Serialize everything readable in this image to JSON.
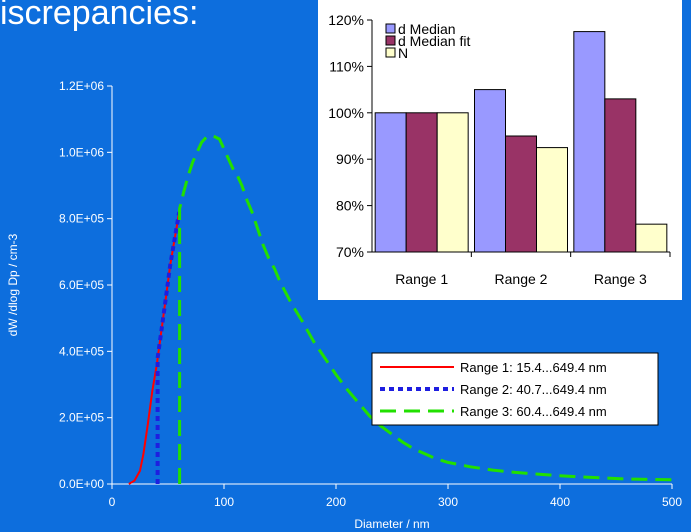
{
  "slide": {
    "heading": "iscrepancies:"
  },
  "colors": {
    "background": "#0d6edd",
    "white": "#ffffff"
  },
  "chart_data": [
    {
      "type": "line",
      "title": "",
      "xlabel": "Diameter / nm",
      "ylabel": "dW /dlog Dp / cm-3",
      "xlim": [
        0,
        500
      ],
      "ylim": [
        0,
        1200000
      ],
      "x_ticks": [
        "0",
        "100",
        "200",
        "300",
        "400",
        "500"
      ],
      "y_ticks": [
        "0.0E+00",
        "2.0E+05",
        "4.0E+05",
        "6.0E+05",
        "8.0E+05",
        "1.0E+06",
        "1.2E+06"
      ],
      "grid": false,
      "legend_position": "right",
      "series": [
        {
          "name": "Range 1: 15.4...649.4 nm",
          "color": "#ff0000",
          "style": "solid",
          "points": [
            [
              15,
              0
            ],
            [
              20,
              10000
            ],
            [
              25,
              40000
            ],
            [
              28,
              90000
            ],
            [
              32,
              180000
            ],
            [
              36,
              280000
            ],
            [
              40,
              360000
            ],
            [
              44,
              460000
            ],
            [
              48,
              560000
            ],
            [
              52,
              660000
            ],
            [
              56,
              740000
            ],
            [
              60,
              820000
            ]
          ]
        },
        {
          "name": "Range 2: 40.7...649.4 nm",
          "color": "#1e1ee0",
          "style": "dotted",
          "points": [
            [
              40.7,
              0
            ],
            [
              40.7,
              380000
            ],
            [
              44,
              460000
            ],
            [
              48,
              560000
            ],
            [
              52,
              660000
            ],
            [
              56,
              740000
            ],
            [
              60,
              820000
            ]
          ]
        },
        {
          "name": "Range 3: 60.4...649.4 nm",
          "color": "#22e000",
          "style": "dashed",
          "points": [
            [
              60.4,
              0
            ],
            [
              60.4,
              830000
            ],
            [
              64,
              880000
            ],
            [
              68,
              930000
            ],
            [
              72,
              970000
            ],
            [
              76,
              1000000
            ],
            [
              80,
              1030000
            ],
            [
              84,
              1045000
            ],
            [
              90,
              1050000
            ],
            [
              96,
              1040000
            ],
            [
              100,
              1010000
            ],
            [
              104,
              980000
            ],
            [
              108,
              950000
            ],
            [
              112,
              930000
            ],
            [
              116,
              900000
            ],
            [
              120,
              860000
            ],
            [
              125,
              820000
            ],
            [
              130,
              770000
            ],
            [
              135,
              720000
            ],
            [
              140,
              680000
            ],
            [
              145,
              650000
            ],
            [
              150,
              610000
            ],
            [
              160,
              545000
            ],
            [
              170,
              490000
            ],
            [
              180,
              430000
            ],
            [
              190,
              380000
            ],
            [
              200,
              330000
            ],
            [
              210,
              285000
            ],
            [
              220,
              245000
            ],
            [
              230,
              205000
            ],
            [
              240,
              175000
            ],
            [
              250,
              150000
            ],
            [
              260,
              125000
            ],
            [
              270,
              105000
            ],
            [
              280,
              90000
            ],
            [
              290,
              75000
            ],
            [
              300,
              65000
            ],
            [
              320,
              52000
            ],
            [
              340,
              42000
            ],
            [
              360,
              35000
            ],
            [
              380,
              30000
            ],
            [
              400,
              25000
            ],
            [
              420,
              21000
            ],
            [
              440,
              18000
            ],
            [
              460,
              15000
            ],
            [
              480,
              14000
            ],
            [
              500,
              13000
            ]
          ]
        }
      ]
    },
    {
      "type": "bar",
      "title": "",
      "categories": [
        "Range 1",
        "Range 2",
        "Range 3"
      ],
      "ylim": [
        70,
        120
      ],
      "y_ticks": [
        "70%",
        "80%",
        "90%",
        "100%",
        "110%",
        "120%"
      ],
      "grid": false,
      "legend_position": "top-left",
      "series": [
        {
          "name": "d Median",
          "color": "#9999ff",
          "values": [
            100,
            105,
            117.5
          ]
        },
        {
          "name": "d Median fit",
          "color": "#993366",
          "values": [
            100,
            95,
            103
          ]
        },
        {
          "name": "N",
          "color": "#ffffcc",
          "values": [
            100,
            92.5,
            76
          ]
        }
      ]
    }
  ]
}
